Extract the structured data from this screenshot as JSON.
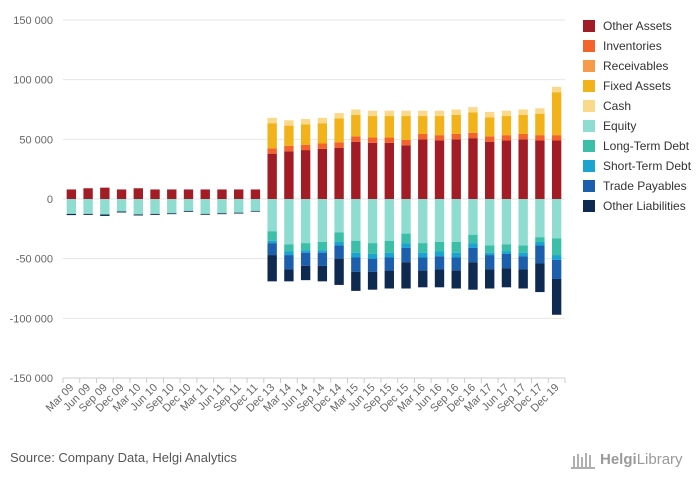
{
  "chart_data": {
    "type": "bar",
    "stacked": true,
    "ylim": [
      -150000,
      150000
    ],
    "yticks": [
      150000,
      100000,
      50000,
      0,
      -50000,
      -100000,
      -150000
    ],
    "ytick_labels": [
      "150 000",
      "100 000",
      "50 000",
      "0",
      "-50 000",
      "-100 000",
      "-150 000"
    ],
    "grid": true,
    "legend_position": "right",
    "categories": [
      "Mar 09",
      "Jun 09",
      "Sep 09",
      "Dec 09",
      "Mar 10",
      "Jun 10",
      "Sep 10",
      "Dec 10",
      "Mar 11",
      "Jun 11",
      "Sep 11",
      "Dec 11",
      "Dec 13",
      "Mar 14",
      "Jun 14",
      "Sep 14",
      "Dec 14",
      "Mar 15",
      "Jun 15",
      "Sep 15",
      "Dec 15",
      "Mar 16",
      "Jun 16",
      "Sep 16",
      "Dec 16",
      "Mar 17",
      "Jun 17",
      "Sep 17",
      "Dec 17",
      "Dec 19"
    ],
    "xtick_labels": [
      "Mar 09",
      "Jun 09",
      "Sep 09",
      "Dec 09",
      "Mar 10",
      "Jun 10",
      "Sep 10",
      "Dec 10",
      "Mar 11",
      "Jun 11",
      "Sep 11",
      "Dec 11",
      "Dec 13",
      "Mar 14",
      "Jun 14",
      "Sep 14",
      "Dec 14",
      "Mar 15",
      "Jun 15",
      "Sep 15",
      "Dec 15",
      "Mar 16",
      "Jun 16",
      "Sep 16",
      "Dec 16",
      "Mar 17",
      "Jun 17",
      "Sep 17",
      "Dec 17",
      "Dec 19"
    ],
    "series": [
      {
        "name": "Other Assets",
        "color": "#a21c26",
        "values": [
          8000,
          9000,
          9500,
          8000,
          9000,
          8000,
          8000,
          8000,
          8000,
          8000,
          8000,
          8000,
          38000,
          40000,
          41000,
          42000,
          43000,
          48000,
          47000,
          47000,
          45000,
          50000,
          49000,
          50000,
          51000,
          48000,
          49000,
          50000,
          49000,
          49000
        ]
      },
      {
        "name": "Inventories",
        "color": "#f4632a",
        "values": [
          0,
          0,
          0,
          0,
          0,
          0,
          0,
          0,
          0,
          0,
          0,
          0,
          4500,
          4500,
          4500,
          4500,
          4500,
          4500,
          4500,
          4500,
          4500,
          4500,
          4500,
          4500,
          4500,
          4500,
          4500,
          4500,
          4500,
          4500
        ]
      },
      {
        "name": "Receivables",
        "color": "#f79a4a",
        "values": [
          0,
          0,
          0,
          0,
          0,
          0,
          0,
          0,
          0,
          0,
          0,
          0,
          0,
          0,
          0,
          0,
          0,
          0,
          0,
          0,
          0,
          0,
          0,
          0,
          0,
          0,
          0,
          0,
          0,
          0
        ]
      },
      {
        "name": "Fixed Assets",
        "color": "#f1b21a",
        "values": [
          0,
          0,
          0,
          0,
          0,
          0,
          0,
          0,
          0,
          0,
          0,
          0,
          21000,
          17000,
          17000,
          17000,
          20000,
          18000,
          18000,
          18000,
          20000,
          15000,
          16000,
          16000,
          17000,
          16000,
          16000,
          16000,
          18000,
          36000
        ]
      },
      {
        "name": "Cash",
        "color": "#fbd98a",
        "values": [
          0,
          0,
          0,
          0,
          0,
          0,
          0,
          0,
          0,
          0,
          0,
          0,
          4500,
          4500,
          4500,
          4500,
          4500,
          4500,
          4500,
          4500,
          4500,
          4500,
          4500,
          4500,
          4500,
          4500,
          4500,
          4500,
          4500,
          4500
        ]
      },
      {
        "name": "Equity",
        "color": "#8fdcd0",
        "values": [
          -12500,
          -12500,
          -13000,
          -10500,
          -13000,
          -12500,
          -12000,
          -10000,
          -12500,
          -12000,
          -11500,
          -10000,
          -27000,
          -38000,
          -37000,
          -36000,
          -28000,
          -35000,
          -37000,
          -35000,
          -29000,
          -37000,
          -36000,
          -36000,
          -30000,
          -39000,
          -38000,
          -39000,
          -32000,
          -33000
        ]
      },
      {
        "name": "Long-Term Debt",
        "color": "#3cbfa9",
        "values": [
          0,
          0,
          0,
          0,
          0,
          0,
          0,
          0,
          0,
          0,
          0,
          0,
          -8000,
          -6000,
          -6000,
          -7000,
          -8000,
          -10000,
          -9000,
          -10000,
          -8000,
          -8000,
          -8000,
          -9000,
          -7000,
          -6000,
          -6000,
          -6000,
          -4000,
          -14000
        ]
      },
      {
        "name": "Short-Term Debt",
        "color": "#1aa4d0",
        "values": [
          0,
          0,
          0,
          0,
          0,
          0,
          0,
          0,
          0,
          0,
          0,
          0,
          -2000,
          -3000,
          -2000,
          -2000,
          -3000,
          -4000,
          -4000,
          -4000,
          -4000,
          -4000,
          -4000,
          -4000,
          -4000,
          -2000,
          -2000,
          -3000,
          -3000,
          -4000
        ]
      },
      {
        "name": "Trade Payables",
        "color": "#1b5fad",
        "values": [
          0,
          0,
          0,
          0,
          0,
          0,
          0,
          0,
          0,
          0,
          0,
          0,
          -10000,
          -12000,
          -11000,
          -11000,
          -11000,
          -12000,
          -11000,
          -11000,
          -12000,
          -11000,
          -11000,
          -11000,
          -12000,
          -12000,
          -12000,
          -11000,
          -15000,
          -16000
        ]
      },
      {
        "name": "Other Liabilities",
        "color": "#0e2a50",
        "values": [
          -1000,
          -800,
          -1200,
          -800,
          -800,
          -800,
          -700,
          -700,
          -700,
          -700,
          -700,
          -600,
          -22000,
          -10000,
          -12000,
          -13000,
          -22000,
          -16000,
          -15000,
          -15000,
          -22000,
          -14000,
          -15000,
          -15000,
          -23000,
          -16000,
          -16000,
          -16000,
          -24000,
          -30000
        ]
      }
    ]
  },
  "legend_items": [
    "Other Assets",
    "Inventories",
    "Receivables",
    "Fixed Assets",
    "Cash",
    "Equity",
    "Long-Term Debt",
    "Short-Term Debt",
    "Trade Payables",
    "Other Liabilities"
  ],
  "footer": {
    "source": "Source: Company Data, Helgi Analytics",
    "brand_bold": "Helgi",
    "brand_rest": "Library"
  }
}
